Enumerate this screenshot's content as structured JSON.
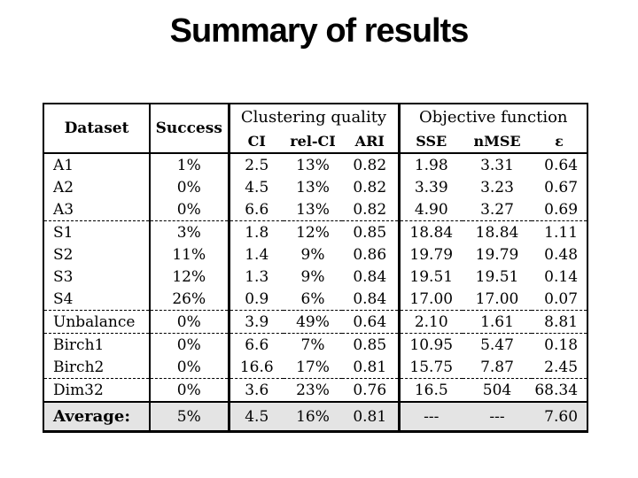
{
  "slide": {
    "title": "Summary of results"
  },
  "colors": {
    "background": "#ffffff",
    "text": "#000000",
    "average_row_bg": "#e4e4e4",
    "border": "#000000"
  },
  "table": {
    "header": {
      "dataset": "Dataset",
      "success": "Success",
      "groups": [
        {
          "label": "Clustering quality",
          "cols": [
            "CI",
            "rel-CI",
            "ARI"
          ]
        },
        {
          "label": "Objective function",
          "cols": [
            "SSE",
            "nMSE",
            "ε"
          ]
        }
      ]
    },
    "rows": [
      {
        "ds": "A1",
        "succ": "1%",
        "ci": "2.5",
        "relci": "13%",
        "ari": "0.82",
        "sse": "1.98",
        "nmse": "3.31",
        "eps": "0.64"
      },
      {
        "ds": "A2",
        "succ": "0%",
        "ci": "4.5",
        "relci": "13%",
        "ari": "0.82",
        "sse": "3.39",
        "nmse": "3.23",
        "eps": "0.67"
      },
      {
        "ds": "A3",
        "succ": "0%",
        "ci": "6.6",
        "relci": "13%",
        "ari": "0.82",
        "sse": "4.90",
        "nmse": "3.27",
        "eps": "0.69"
      },
      {
        "ds": "S1",
        "succ": "3%",
        "ci": "1.8",
        "relci": "12%",
        "ari": "0.85",
        "sse": "18.84",
        "nmse": "18.84",
        "eps": "1.11"
      },
      {
        "ds": "S2",
        "succ": "11%",
        "ci": "1.4",
        "relci": "9%",
        "ari": "0.86",
        "sse": "19.79",
        "nmse": "19.79",
        "eps": "0.48"
      },
      {
        "ds": "S3",
        "succ": "12%",
        "ci": "1.3",
        "relci": "9%",
        "ari": "0.84",
        "sse": "19.51",
        "nmse": "19.51",
        "eps": "0.14"
      },
      {
        "ds": "S4",
        "succ": "26%",
        "ci": "0.9",
        "relci": "6%",
        "ari": "0.84",
        "sse": "17.00",
        "nmse": "17.00",
        "eps": "0.07"
      },
      {
        "ds": "Unbalance",
        "succ": "0%",
        "ci": "3.9",
        "relci": "49%",
        "ari": "0.64",
        "sse": "2.10",
        "nmse": "1.61",
        "eps": "8.81"
      },
      {
        "ds": "Birch1",
        "succ": "0%",
        "ci": "6.6",
        "relci": "7%",
        "ari": "0.85",
        "sse": "10.95",
        "nmse": "5.47",
        "eps": "0.18"
      },
      {
        "ds": "Birch2",
        "succ": "0%",
        "ci": "16.6",
        "relci": "17%",
        "ari": "0.81",
        "sse": "15.75",
        "nmse": "7.87",
        "eps": "2.45"
      },
      {
        "ds": "Dim32",
        "succ": "0%",
        "ci": "3.6",
        "relci": "23%",
        "ari": "0.76",
        "sse": "16.5",
        "nmse": "504",
        "eps": "68.34"
      }
    ],
    "average": {
      "ds": "Average:",
      "succ": "5%",
      "ci": "4.5",
      "relci": "16%",
      "ari": "0.81",
      "sse": "---",
      "nmse": "---",
      "eps": "7.60"
    }
  }
}
